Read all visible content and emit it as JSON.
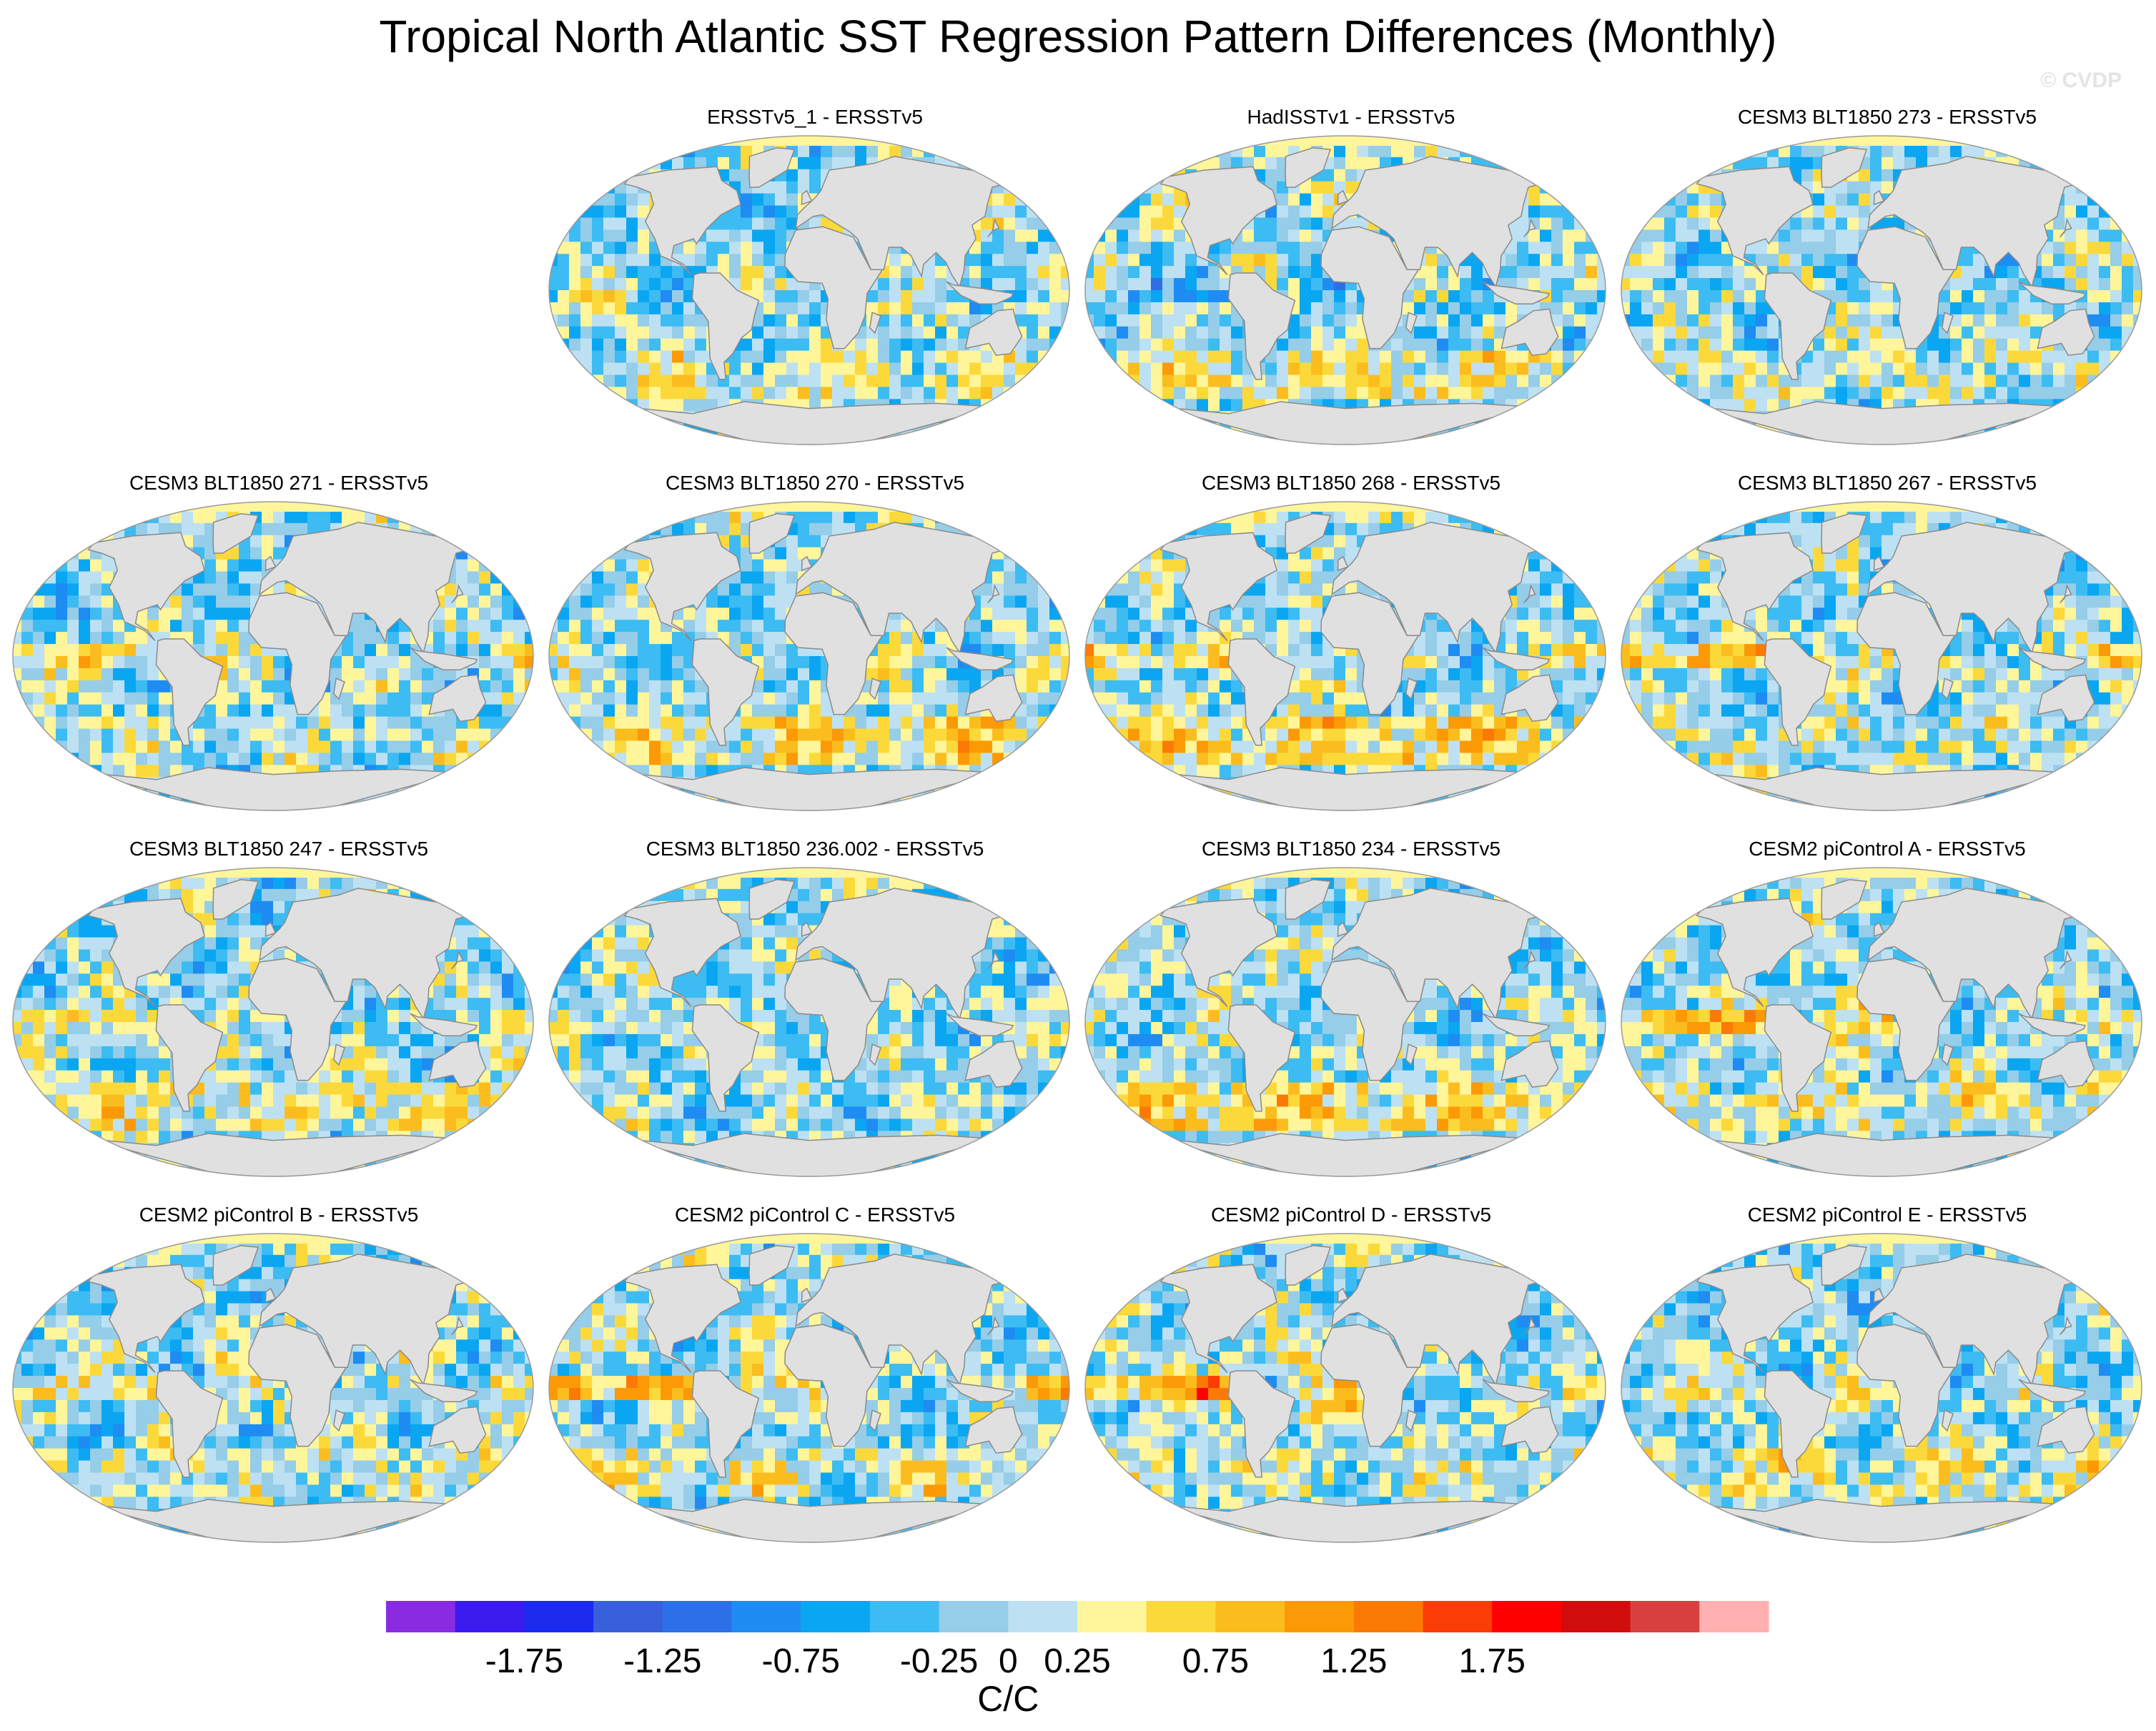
{
  "title": "Tropical North Atlantic SST Regression Pattern Differences (Monthly)",
  "watermark": "© CVDP",
  "chart_data": {
    "type": "heatmap",
    "projection": "Robinson (global ocean map with land masked)",
    "layout": "4 rows x 4 columns, top-left cell empty",
    "panels": [
      {
        "title": "ERSSTv5_1 - ERSSTv5",
        "row": 0,
        "col": 1,
        "nino": 0.0,
        "south_ocean": 0.3
      },
      {
        "title": "HadISSTv1 - ERSSTv5",
        "row": 0,
        "col": 2,
        "nino": -0.4,
        "south_ocean": 0.4
      },
      {
        "title": "CESM3 BLT1850 273 - ERSSTv5",
        "row": 0,
        "col": 3,
        "nino": 0.2,
        "south_ocean": 0.2
      },
      {
        "title": "CESM3 BLT1850 271 - ERSSTv5",
        "row": 1,
        "col": 0,
        "nino": 0.7,
        "south_ocean": 0.1
      },
      {
        "title": "CESM3 BLT1850 270 - ERSSTv5",
        "row": 1,
        "col": 1,
        "nino": 0.1,
        "south_ocean": 0.5
      },
      {
        "title": "CESM3 BLT1850 268 - ERSSTv5",
        "row": 1,
        "col": 2,
        "nino": 0.8,
        "south_ocean": 0.6
      },
      {
        "title": "CESM3 BLT1850 267 - ERSSTv5",
        "row": 1,
        "col": 3,
        "nino": 1.1,
        "south_ocean": 0.2
      },
      {
        "title": "CESM3 BLT1850 247 - ERSSTv5",
        "row": 2,
        "col": 0,
        "nino": 0.5,
        "south_ocean": 0.4
      },
      {
        "title": "CESM3 BLT1850 236.002 - ERSSTv5",
        "row": 2,
        "col": 1,
        "nino": 0.2,
        "south_ocean": 0.0
      },
      {
        "title": "CESM3 BLT1850 234 - ERSSTv5",
        "row": 2,
        "col": 2,
        "nino": 0.3,
        "south_ocean": 0.6
      },
      {
        "title": "CESM2 piControl A - ERSSTv5",
        "row": 2,
        "col": 3,
        "nino": 1.2,
        "south_ocean": 0.3
      },
      {
        "title": "CESM2 piControl B - ERSSTv5",
        "row": 3,
        "col": 0,
        "nino": 0.6,
        "south_ocean": 0.2
      },
      {
        "title": "CESM2 piControl C - ERSSTv5",
        "row": 3,
        "col": 1,
        "nino": 1.4,
        "south_ocean": 0.3
      },
      {
        "title": "CESM2 piControl D - ERSSTv5",
        "row": 3,
        "col": 2,
        "nino": 1.4,
        "south_ocean": 0.2
      },
      {
        "title": "CESM2 piControl E - ERSSTv5",
        "row": 3,
        "col": 3,
        "nino": 0.3,
        "south_ocean": 0.3
      }
    ],
    "colorbar": {
      "levels": [
        -2,
        -1.75,
        -1.5,
        -1.25,
        -1,
        -0.75,
        -0.5,
        -0.25,
        0,
        0.25,
        0.5,
        0.75,
        1,
        1.25,
        1.5,
        1.75,
        2
      ],
      "colors": [
        "#8a2be2",
        "#3b1bf0",
        "#1b2bf0",
        "#3a5fdc",
        "#2d6fe6",
        "#1e8cf2",
        "#0aa6f2",
        "#3cbcf2",
        "#96cde8",
        "#bde1f2",
        "#fff59a",
        "#fcd93a",
        "#fbbd1e",
        "#fb9a06",
        "#fb7a06",
        "#fb3c06",
        "#ff0000",
        "#d10c0c",
        "#d84040",
        "#ffb0b0"
      ],
      "tick_labels": [
        "-1.75",
        "-1.25",
        "-0.75",
        "-0.25",
        "0",
        "0.25",
        "0.75",
        "1.25",
        "1.75"
      ],
      "units": "C/C"
    }
  }
}
